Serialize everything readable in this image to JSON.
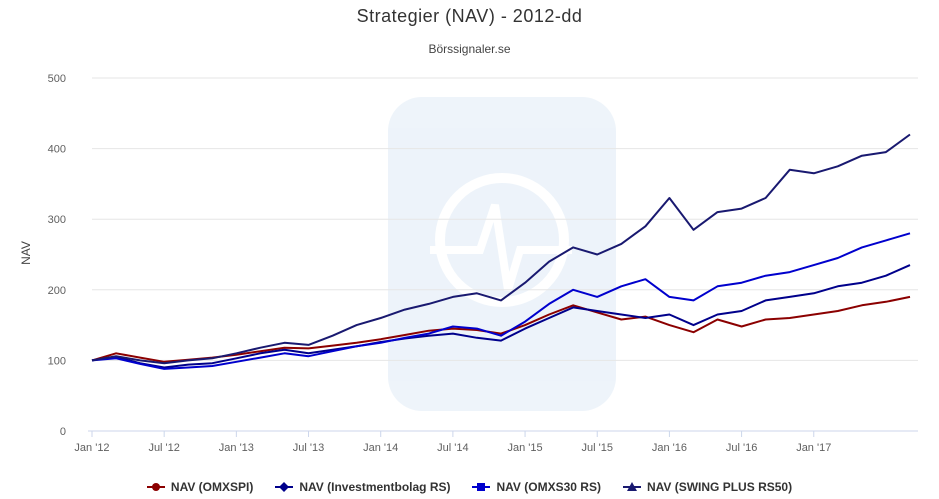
{
  "chart_data": {
    "type": "line",
    "title": "Strategier (NAV) - 2012-dd",
    "subtitle": "Börssignaler.se",
    "xlabel": "",
    "ylabel": "NAV",
    "ylim": [
      0,
      500
    ],
    "yticks": [
      0,
      100,
      200,
      300,
      400,
      500
    ],
    "xticks": [
      "Jan '12",
      "Jul '12",
      "Jan '13",
      "Jul '13",
      "Jan '14",
      "Jul '14",
      "Jan '15",
      "Jul '15",
      "Jan '16",
      "Jul '16",
      "Jan '17"
    ],
    "grid": true,
    "legend_position": "bottom",
    "x": [
      "2012-01",
      "2012-03",
      "2012-05",
      "2012-07",
      "2012-09",
      "2012-11",
      "2013-01",
      "2013-03",
      "2013-05",
      "2013-07",
      "2013-09",
      "2013-11",
      "2014-01",
      "2014-03",
      "2014-05",
      "2014-07",
      "2014-09",
      "2014-11",
      "2015-01",
      "2015-03",
      "2015-05",
      "2015-07",
      "2015-09",
      "2015-11",
      "2016-01",
      "2016-03",
      "2016-05",
      "2016-07",
      "2016-09",
      "2016-11",
      "2017-01",
      "2017-03",
      "2017-05",
      "2017-07",
      "2017-09"
    ],
    "series": [
      {
        "name": "NAV (OMXSPI)",
        "color": "#8b0000",
        "marker": "circle",
        "values": [
          100,
          110,
          104,
          98,
          101,
          104,
          108,
          113,
          118,
          117,
          121,
          125,
          130,
          136,
          142,
          145,
          143,
          138,
          150,
          165,
          178,
          168,
          158,
          162,
          150,
          140,
          158,
          148,
          158,
          160,
          165,
          170,
          178,
          183,
          190
        ]
      },
      {
        "name": "NAV (Investmentbolag RS)",
        "color": "#00008b",
        "marker": "diamond",
        "values": [
          100,
          105,
          96,
          90,
          94,
          96,
          103,
          110,
          115,
          110,
          115,
          120,
          126,
          131,
          135,
          138,
          132,
          128,
          145,
          160,
          175,
          170,
          165,
          160,
          165,
          150,
          165,
          170,
          185,
          190,
          195,
          205,
          210,
          220,
          235
        ]
      },
      {
        "name": "NAV (OMXS30 RS)",
        "color": "#0000cd",
        "marker": "square",
        "values": [
          100,
          103,
          95,
          88,
          90,
          92,
          98,
          104,
          110,
          106,
          113,
          120,
          125,
          132,
          138,
          148,
          145,
          135,
          155,
          180,
          200,
          190,
          205,
          215,
          190,
          185,
          205,
          210,
          220,
          225,
          235,
          245,
          260,
          270,
          280
        ]
      },
      {
        "name": "NAV (SWING PLUS RS50)",
        "color": "#191970",
        "marker": "triangle",
        "values": [
          100,
          106,
          100,
          96,
          100,
          103,
          110,
          118,
          125,
          122,
          135,
          150,
          160,
          172,
          180,
          190,
          195,
          185,
          210,
          240,
          260,
          250,
          265,
          290,
          330,
          285,
          310,
          315,
          330,
          370,
          365,
          375,
          390,
          395,
          420
        ]
      }
    ]
  }
}
